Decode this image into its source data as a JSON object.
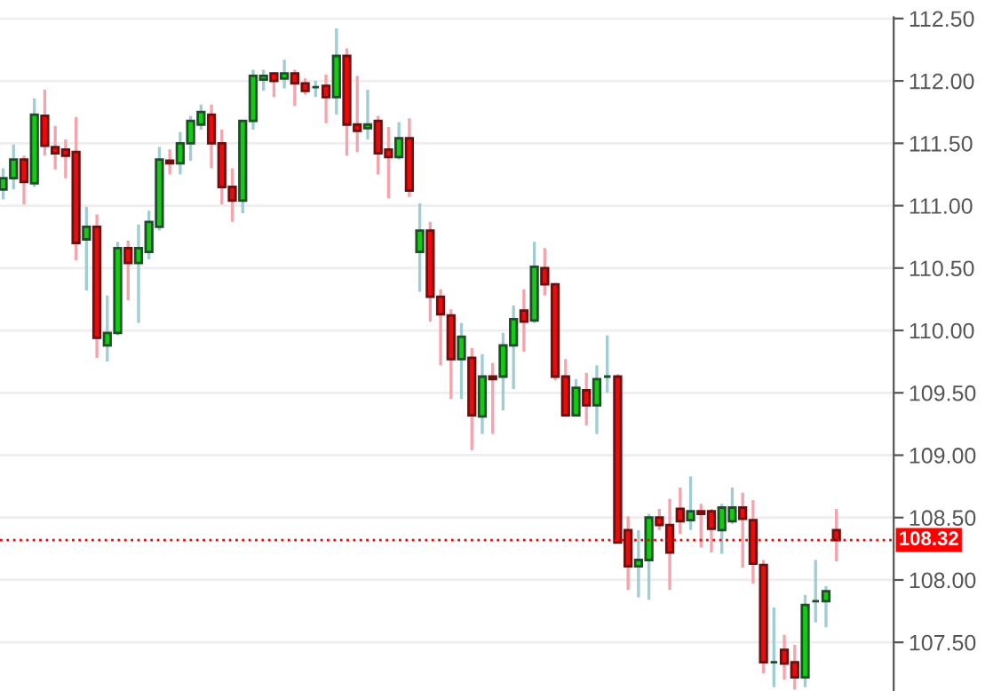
{
  "chart_data": {
    "type": "candlestick",
    "categories": [
      null,
      null,
      null,
      null,
      null,
      null,
      null,
      null,
      null,
      null,
      null,
      null,
      null,
      null,
      null,
      null,
      null,
      null,
      null,
      null,
      null,
      null,
      null,
      null,
      null,
      null,
      null,
      null,
      null,
      null,
      null,
      null,
      null,
      null,
      null,
      null,
      null,
      null,
      null,
      null,
      null,
      null,
      null,
      null,
      null,
      null,
      null,
      null,
      null,
      null,
      null,
      null,
      null,
      null,
      null,
      null,
      null,
      null,
      null,
      null,
      null,
      null,
      null,
      null,
      null,
      null,
      null,
      null,
      null,
      null,
      null,
      null,
      null,
      null,
      null,
      null,
      null,
      null,
      null,
      null,
      null
    ],
    "ohlc": [
      [
        111.13,
        111.3,
        111.05,
        111.22
      ],
      [
        111.22,
        111.49,
        111.13,
        111.37
      ],
      [
        111.37,
        111.4,
        111.01,
        111.19
      ],
      [
        111.18,
        111.86,
        111.15,
        111.73
      ],
      [
        111.72,
        111.93,
        111.4,
        111.48
      ],
      [
        111.47,
        111.64,
        111.29,
        111.42
      ],
      [
        111.45,
        111.53,
        111.22,
        111.4
      ],
      [
        111.43,
        111.71,
        110.56,
        110.7
      ],
      [
        110.73,
        110.99,
        110.32,
        110.83
      ],
      [
        110.83,
        110.93,
        109.78,
        109.94
      ],
      [
        109.88,
        110.28,
        109.75,
        109.98
      ],
      [
        109.98,
        110.71,
        109.96,
        110.66
      ],
      [
        110.66,
        110.72,
        110.24,
        110.54
      ],
      [
        110.54,
        110.85,
        110.06,
        110.66
      ],
      [
        110.63,
        110.96,
        110.57,
        110.87
      ],
      [
        110.83,
        111.47,
        110.8,
        111.37
      ],
      [
        111.36,
        111.45,
        111.25,
        111.34
      ],
      [
        111.34,
        111.59,
        111.25,
        111.5
      ],
      [
        111.5,
        111.72,
        111.36,
        111.68
      ],
      [
        111.65,
        111.81,
        111.61,
        111.75
      ],
      [
        111.73,
        111.81,
        111.3,
        111.5
      ],
      [
        111.5,
        111.61,
        111.01,
        111.15
      ],
      [
        111.15,
        111.3,
        110.87,
        111.04
      ],
      [
        111.04,
        111.68,
        110.94,
        111.68
      ],
      [
        111.68,
        112.09,
        111.61,
        112.04
      ],
      [
        112.01,
        112.09,
        111.92,
        112.04
      ],
      [
        112.06,
        112.07,
        111.87,
        112.0
      ],
      [
        112.02,
        112.17,
        111.94,
        112.06
      ],
      [
        112.06,
        112.09,
        111.8,
        111.98
      ],
      [
        111.98,
        112.02,
        111.89,
        111.92
      ],
      [
        111.95,
        112.0,
        111.87,
        111.95
      ],
      [
        111.96,
        112.05,
        111.66,
        111.87
      ],
      [
        111.87,
        112.42,
        111.73,
        112.2
      ],
      [
        112.2,
        112.26,
        111.4,
        111.65
      ],
      [
        111.65,
        112.04,
        111.43,
        111.6
      ],
      [
        111.62,
        111.93,
        111.53,
        111.65
      ],
      [
        111.68,
        111.72,
        111.25,
        111.42
      ],
      [
        111.45,
        111.63,
        111.06,
        111.39
      ],
      [
        111.39,
        111.67,
        111.37,
        111.54
      ],
      [
        111.54,
        111.7,
        111.07,
        111.12
      ],
      [
        110.63,
        111.02,
        110.31,
        110.8
      ],
      [
        110.8,
        110.87,
        110.07,
        110.27
      ],
      [
        110.27,
        110.33,
        109.72,
        110.13
      ],
      [
        110.12,
        110.17,
        109.45,
        109.77
      ],
      [
        109.77,
        110.06,
        109.45,
        109.95
      ],
      [
        109.78,
        109.86,
        109.04,
        109.32
      ],
      [
        109.31,
        109.81,
        109.17,
        109.63
      ],
      [
        109.63,
        109.74,
        109.17,
        109.61
      ],
      [
        109.63,
        109.98,
        109.36,
        109.88
      ],
      [
        109.88,
        110.2,
        109.53,
        110.09
      ],
      [
        110.16,
        110.33,
        109.83,
        110.07
      ],
      [
        110.08,
        110.71,
        110.06,
        110.51
      ],
      [
        110.5,
        110.66,
        110.28,
        110.37
      ],
      [
        110.37,
        110.38,
        109.6,
        109.63
      ],
      [
        109.63,
        109.77,
        109.31,
        109.32
      ],
      [
        109.32,
        109.61,
        109.31,
        109.54
      ],
      [
        109.52,
        109.66,
        109.24,
        109.4
      ],
      [
        109.4,
        109.72,
        109.17,
        109.61
      ],
      [
        109.63,
        109.96,
        109.5,
        109.63
      ],
      [
        109.63,
        109.65,
        108.3,
        108.3
      ],
      [
        108.4,
        108.51,
        107.92,
        108.11
      ],
      [
        108.11,
        108.4,
        107.86,
        108.16
      ],
      [
        108.16,
        108.53,
        107.84,
        108.5
      ],
      [
        108.5,
        108.57,
        108.4,
        108.44
      ],
      [
        108.44,
        108.65,
        107.92,
        108.22
      ],
      [
        108.57,
        108.74,
        108.37,
        108.47
      ],
      [
        108.48,
        108.83,
        108.4,
        108.55
      ],
      [
        108.55,
        108.61,
        108.26,
        108.53
      ],
      [
        108.55,
        108.57,
        108.22,
        108.41
      ],
      [
        108.4,
        108.61,
        108.21,
        108.58
      ],
      [
        108.47,
        108.74,
        108.45,
        108.58
      ],
      [
        108.58,
        108.7,
        108.1,
        108.49
      ],
      [
        108.48,
        108.64,
        107.97,
        108.13
      ],
      [
        108.12,
        108.16,
        107.25,
        107.34
      ],
      [
        107.34,
        107.78,
        107.14,
        107.34
      ],
      [
        107.44,
        107.56,
        107.2,
        107.33
      ],
      [
        107.34,
        107.48,
        107.12,
        107.22
      ],
      [
        107.22,
        107.88,
        107.14,
        107.8
      ],
      [
        107.83,
        108.16,
        107.66,
        107.83
      ],
      [
        107.83,
        107.95,
        107.62,
        107.91
      ],
      [
        108.4,
        108.57,
        108.15,
        108.32
      ]
    ],
    "ylim": [
      107.11,
      112.51
    ],
    "yticks": [
      {
        "value": 107.5,
        "label": "107.50"
      },
      {
        "value": 108.0,
        "label": "108.00"
      },
      {
        "value": 108.5,
        "label": "108.50"
      },
      {
        "value": 109.0,
        "label": "109.00"
      },
      {
        "value": 109.5,
        "label": "109.50"
      },
      {
        "value": 110.0,
        "label": "110.00"
      },
      {
        "value": 110.5,
        "label": "110.50"
      },
      {
        "value": 111.0,
        "label": "111.00"
      },
      {
        "value": 111.5,
        "label": "111.50"
      },
      {
        "value": 112.0,
        "label": "112.00"
      },
      {
        "value": 112.5,
        "label": "112.50"
      }
    ],
    "ref_lines": [
      {
        "axis": "y",
        "value": 108.32,
        "label": "108.32",
        "color": "#ff0000",
        "line_style": "dotted"
      }
    ],
    "tick_labels": "y",
    "grid": "y"
  }
}
